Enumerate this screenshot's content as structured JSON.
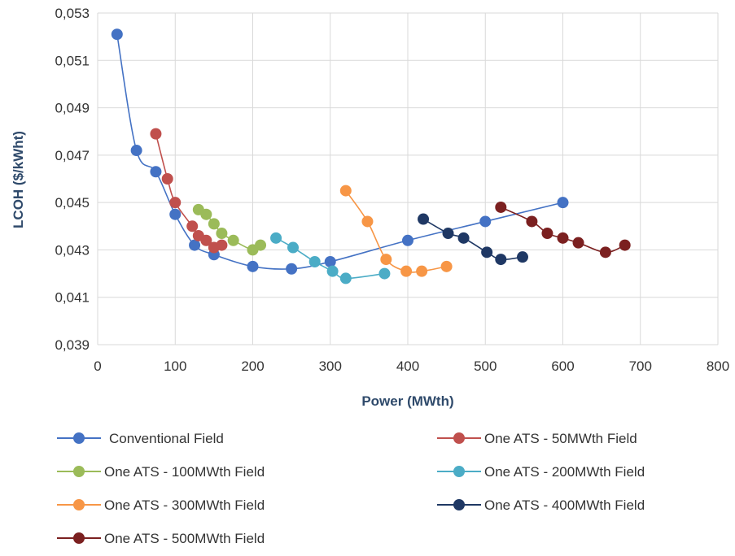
{
  "chart_data": {
    "type": "line",
    "title": "",
    "xlabel": "Power (MWth)",
    "ylabel": "LCOH ($/kWht)",
    "xlim": [
      0,
      800
    ],
    "ylim": [
      0.039,
      0.053
    ],
    "x_ticks": [
      0,
      100,
      200,
      300,
      400,
      500,
      600,
      700,
      800
    ],
    "x_tick_labels": [
      "0",
      "100",
      "200",
      "300",
      "400",
      "500",
      "600",
      "700",
      "800"
    ],
    "y_ticks": [
      0.039,
      0.041,
      0.043,
      0.045,
      0.047,
      0.049,
      0.051,
      0.053
    ],
    "y_tick_labels": [
      "0,039",
      "0,041",
      "0,043",
      "0,045",
      "0,047",
      "0,049",
      "0,051",
      "0,053"
    ],
    "grid": true,
    "legend_position": "bottom",
    "series": [
      {
        "name": "Conventional Field",
        "color": "#4472C4",
        "points": [
          [
            25,
            0.0521
          ],
          [
            50,
            0.0472
          ],
          [
            75,
            0.0463
          ],
          [
            100,
            0.0445
          ],
          [
            125,
            0.0432
          ],
          [
            150,
            0.0428
          ],
          [
            200,
            0.0423
          ],
          [
            250,
            0.0422
          ],
          [
            300,
            0.0425
          ],
          [
            400,
            0.0434
          ],
          [
            500,
            0.0442
          ],
          [
            600,
            0.045
          ]
        ]
      },
      {
        "name": "One ATS - 50MWth Field",
        "color": "#C0504D",
        "points": [
          [
            75,
            0.0479
          ],
          [
            90,
            0.046
          ],
          [
            100,
            0.045
          ],
          [
            122,
            0.044
          ],
          [
            130,
            0.0436
          ],
          [
            140,
            0.0434
          ],
          [
            150,
            0.0431
          ],
          [
            160,
            0.0432
          ]
        ]
      },
      {
        "name": "One ATS - 100MWth Field",
        "color": "#9BBB59",
        "points": [
          [
            130,
            0.0447
          ],
          [
            140,
            0.0445
          ],
          [
            150,
            0.0441
          ],
          [
            160,
            0.0437
          ],
          [
            175,
            0.0434
          ],
          [
            200,
            0.043
          ],
          [
            210,
            0.0432
          ]
        ]
      },
      {
        "name": "One ATS - 200MWth Field",
        "color": "#4BACC6",
        "points": [
          [
            230,
            0.0435
          ],
          [
            252,
            0.0431
          ],
          [
            280,
            0.0425
          ],
          [
            303,
            0.0421
          ],
          [
            320,
            0.0418
          ],
          [
            370,
            0.042
          ]
        ]
      },
      {
        "name": "One ATS - 300MWth Field",
        "color": "#F79646",
        "points": [
          [
            320,
            0.0455
          ],
          [
            348,
            0.0442
          ],
          [
            372,
            0.0426
          ],
          [
            398,
            0.0421
          ],
          [
            418,
            0.0421
          ],
          [
            450,
            0.0423
          ]
        ]
      },
      {
        "name": "One ATS - 400MWth Field",
        "color": "#1F3864",
        "points": [
          [
            420,
            0.0443
          ],
          [
            452,
            0.0437
          ],
          [
            472,
            0.0435
          ],
          [
            502,
            0.0429
          ],
          [
            520,
            0.0426
          ],
          [
            548,
            0.0427
          ]
        ]
      },
      {
        "name": "One ATS - 500MWth Field",
        "color": "#7B2020",
        "points": [
          [
            520,
            0.0448
          ],
          [
            560,
            0.0442
          ],
          [
            580,
            0.0437
          ],
          [
            600,
            0.0435
          ],
          [
            620,
            0.0433
          ],
          [
            655,
            0.0429
          ],
          [
            680,
            0.0432
          ]
        ]
      }
    ]
  }
}
